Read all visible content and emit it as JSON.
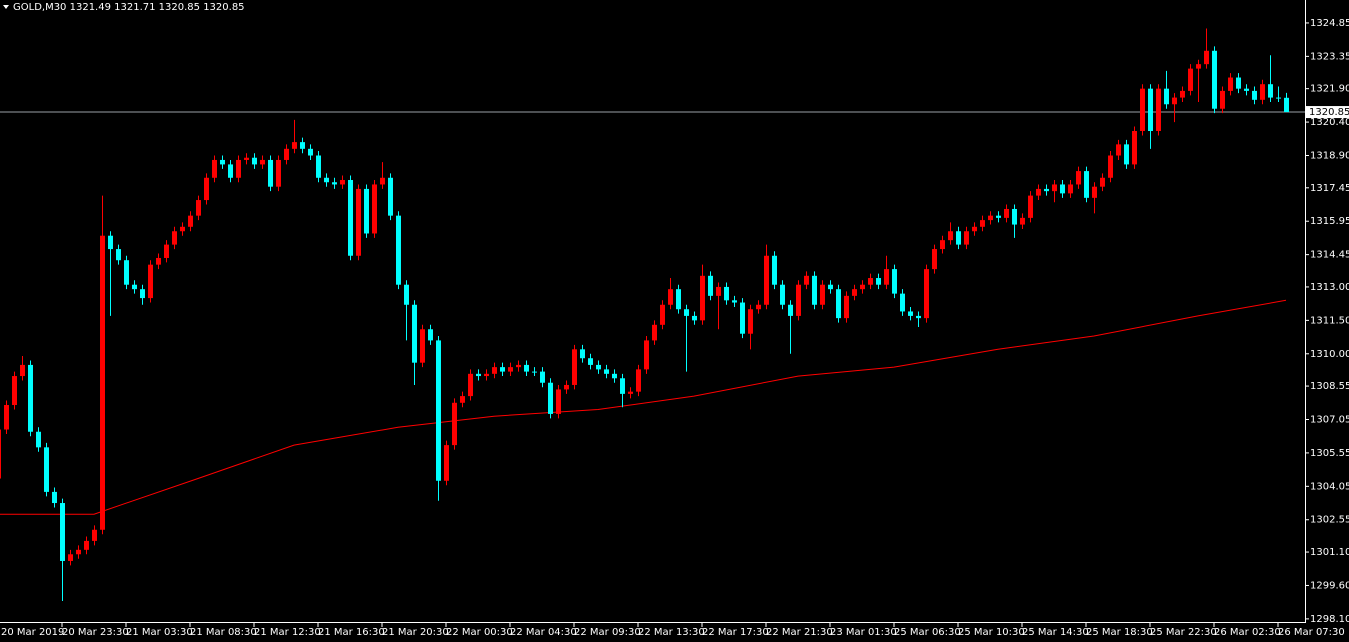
{
  "chart_data": {
    "type": "candlestick",
    "title": "GOLD,M30  1321.49 1321.71 1320.85 1320.85",
    "bull_color": "#ff0000",
    "bear_color": "#00ffff",
    "open": [
      1304.4,
      1306.6,
      1307.7,
      1309.0,
      1309.5,
      1306.5,
      1305.8,
      1303.8,
      1303.3,
      1300.7,
      1301.0,
      1301.2,
      1301.6,
      1302.1,
      1315.3,
      1314.7,
      1314.2,
      1313.1,
      1312.9,
      1312.5,
      1314.0,
      1314.3,
      1314.9,
      1315.5,
      1315.7,
      1316.2,
      1316.9,
      1317.9,
      1318.7,
      1318.5,
      1317.9,
      1318.7,
      1318.8,
      1318.5,
      1318.7,
      1317.5,
      1318.7,
      1319.2,
      1319.5,
      1319.2,
      1318.9,
      1317.9,
      1317.7,
      1317.6,
      1317.8,
      1314.4,
      1317.4,
      1315.4,
      1317.6,
      1317.9,
      1316.2,
      1313.1,
      1312.2,
      1309.6,
      1311.1,
      1310.6,
      1304.3,
      1305.9,
      1307.8,
      1308.1,
      1309.1,
      1309.0,
      1309.1,
      1309.4,
      1309.2,
      1309.4,
      1309.5,
      1309.2,
      1309.2,
      1308.7,
      1307.3,
      1308.4,
      1308.6,
      1310.2,
      1309.8,
      1309.5,
      1309.3,
      1309.1,
      1308.9,
      1308.2,
      1308.3,
      1309.3,
      1310.6,
      1311.3,
      1312.2,
      1312.9,
      1312.0,
      1311.7,
      1311.5,
      1313.5,
      1312.6,
      1313.0,
      1312.4,
      1312.3,
      1310.9,
      1312.0,
      1312.2,
      1314.4,
      1313.1,
      1312.2,
      1311.7,
      1313.1,
      1313.5,
      1312.2,
      1313.1,
      1312.9,
      1311.6,
      1312.6,
      1312.9,
      1313.1,
      1313.4,
      1313.1,
      1313.8,
      1312.7,
      1311.9,
      1311.7,
      1311.6,
      1313.8,
      1314.7,
      1315.1,
      1315.5,
      1314.9,
      1315.5,
      1315.7,
      1316.0,
      1316.2,
      1316.1,
      1316.5,
      1315.8,
      1316.1,
      1317.1,
      1317.4,
      1317.3,
      1317.6,
      1317.2,
      1317.6,
      1318.2,
      1317.0,
      1317.5,
      1317.9,
      1318.9,
      1319.4,
      1318.5,
      1320.0,
      1321.9,
      1320.0,
      1321.9,
      1321.2,
      1321.5,
      1321.8,
      1322.8,
      1323.0,
      1323.6,
      1321.0,
      1321.8,
      1322.4,
      1321.9,
      1321.8,
      1321.4,
      1322.1,
      1321.5,
      1321.49
    ],
    "high": [
      1306.8,
      1307.9,
      1309.2,
      1309.9,
      1309.7,
      1306.7,
      1306.0,
      1304.0,
      1303.5,
      1301.2,
      1301.4,
      1301.8,
      1302.3,
      1317.1,
      1315.5,
      1314.9,
      1314.4,
      1313.3,
      1313.1,
      1314.2,
      1314.5,
      1315.1,
      1315.7,
      1315.9,
      1316.4,
      1317.1,
      1318.1,
      1318.9,
      1318.9,
      1318.7,
      1318.9,
      1319.0,
      1319.0,
      1318.9,
      1318.9,
      1318.9,
      1319.4,
      1320.5,
      1319.7,
      1319.4,
      1319.1,
      1318.1,
      1317.9,
      1318.0,
      1318.0,
      1317.6,
      1317.6,
      1317.8,
      1318.6,
      1318.1,
      1316.4,
      1313.3,
      1312.4,
      1311.3,
      1311.3,
      1310.8,
      1306.1,
      1308.0,
      1308.3,
      1309.3,
      1309.3,
      1309.3,
      1309.6,
      1309.6,
      1309.6,
      1309.7,
      1309.7,
      1309.4,
      1309.4,
      1308.9,
      1308.6,
      1308.8,
      1310.4,
      1310.4,
      1310.0,
      1309.7,
      1309.5,
      1309.3,
      1309.1,
      1308.5,
      1309.5,
      1310.8,
      1311.5,
      1312.4,
      1313.4,
      1313.1,
      1312.2,
      1311.9,
      1314.0,
      1313.7,
      1313.2,
      1313.2,
      1312.6,
      1312.5,
      1312.2,
      1312.4,
      1314.9,
      1314.6,
      1313.3,
      1312.4,
      1313.3,
      1313.7,
      1313.7,
      1313.3,
      1313.3,
      1313.1,
      1312.8,
      1313.1,
      1313.3,
      1313.6,
      1313.6,
      1314.4,
      1314.0,
      1312.9,
      1312.1,
      1311.9,
      1314.0,
      1314.9,
      1315.3,
      1315.9,
      1315.7,
      1315.7,
      1315.9,
      1316.2,
      1316.4,
      1316.4,
      1316.7,
      1316.7,
      1316.3,
      1317.3,
      1317.6,
      1317.6,
      1317.8,
      1317.8,
      1317.8,
      1318.4,
      1318.4,
      1317.7,
      1318.1,
      1319.1,
      1319.6,
      1319.6,
      1320.2,
      1322.1,
      1322.1,
      1322.1,
      1322.7,
      1321.7,
      1322.0,
      1323.0,
      1323.2,
      1324.6,
      1323.8,
      1322.0,
      1322.6,
      1322.6,
      1322.1,
      1322.0,
      1322.3,
      1323.4,
      1322.0,
      1321.71
    ],
    "low": [
      1304.2,
      1306.4,
      1307.5,
      1308.8,
      1306.3,
      1305.6,
      1303.6,
      1303.1,
      1298.9,
      1300.5,
      1300.8,
      1301.0,
      1301.4,
      1301.9,
      1311.7,
      1314.0,
      1312.9,
      1312.7,
      1312.2,
      1312.3,
      1313.8,
      1314.1,
      1314.7,
      1315.3,
      1315.5,
      1316.0,
      1316.7,
      1317.7,
      1318.3,
      1317.7,
      1317.7,
      1318.5,
      1318.3,
      1318.3,
      1317.3,
      1317.3,
      1318.5,
      1319.0,
      1319.0,
      1318.7,
      1317.7,
      1317.5,
      1317.4,
      1317.4,
      1314.2,
      1314.2,
      1315.2,
      1315.2,
      1317.4,
      1316.0,
      1312.9,
      1310.6,
      1308.6,
      1309.4,
      1310.4,
      1303.4,
      1304.1,
      1305.7,
      1307.6,
      1307.9,
      1308.8,
      1308.8,
      1308.9,
      1309.0,
      1309.0,
      1309.2,
      1309.0,
      1309.0,
      1308.5,
      1307.1,
      1307.1,
      1308.2,
      1308.4,
      1309.6,
      1309.3,
      1309.1,
      1308.9,
      1308.7,
      1307.6,
      1308.0,
      1308.1,
      1309.1,
      1310.4,
      1311.1,
      1312.0,
      1311.8,
      1309.2,
      1311.3,
      1311.3,
      1312.4,
      1311.1,
      1312.2,
      1312.1,
      1310.7,
      1310.2,
      1311.8,
      1312.0,
      1312.9,
      1312.0,
      1310.0,
      1311.5,
      1312.9,
      1312.0,
      1312.0,
      1312.7,
      1311.4,
      1311.4,
      1312.4,
      1312.7,
      1312.9,
      1312.9,
      1312.9,
      1312.5,
      1311.7,
      1311.5,
      1311.2,
      1311.4,
      1313.6,
      1314.5,
      1314.9,
      1314.7,
      1314.7,
      1315.3,
      1315.5,
      1315.8,
      1315.9,
      1315.9,
      1315.2,
      1315.6,
      1315.9,
      1316.9,
      1317.1,
      1316.8,
      1317.0,
      1317.0,
      1317.4,
      1316.8,
      1316.3,
      1317.3,
      1317.7,
      1318.7,
      1318.3,
      1318.3,
      1319.8,
      1319.2,
      1319.8,
      1321.0,
      1320.4,
      1321.3,
      1321.6,
      1321.3,
      1322.8,
      1320.8,
      1320.8,
      1321.6,
      1321.7,
      1321.6,
      1321.2,
      1321.2,
      1321.3,
      1321.3,
      1320.85
    ],
    "close": [
      1306.6,
      1307.7,
      1309.0,
      1309.5,
      1306.5,
      1305.8,
      1303.8,
      1303.3,
      1300.7,
      1301.0,
      1301.2,
      1301.6,
      1302.1,
      1315.3,
      1314.7,
      1314.2,
      1313.1,
      1312.9,
      1312.5,
      1314.0,
      1314.3,
      1314.9,
      1315.5,
      1315.7,
      1316.2,
      1316.9,
      1317.9,
      1318.7,
      1318.5,
      1317.9,
      1318.7,
      1318.8,
      1318.5,
      1318.7,
      1317.5,
      1318.7,
      1319.2,
      1319.5,
      1319.2,
      1318.9,
      1317.9,
      1317.7,
      1317.6,
      1317.8,
      1314.4,
      1317.4,
      1315.4,
      1317.6,
      1317.9,
      1316.2,
      1313.1,
      1312.2,
      1309.6,
      1311.1,
      1310.6,
      1304.3,
      1305.9,
      1307.8,
      1308.1,
      1309.1,
      1309.0,
      1309.1,
      1309.4,
      1309.2,
      1309.4,
      1309.5,
      1309.2,
      1309.2,
      1308.7,
      1307.3,
      1308.4,
      1308.6,
      1310.2,
      1309.8,
      1309.5,
      1309.3,
      1309.1,
      1308.9,
      1308.2,
      1308.3,
      1309.3,
      1310.6,
      1311.3,
      1312.2,
      1312.9,
      1312.0,
      1311.7,
      1311.5,
      1313.5,
      1312.6,
      1313.0,
      1312.4,
      1312.3,
      1310.9,
      1312.0,
      1312.2,
      1314.4,
      1313.1,
      1312.2,
      1311.7,
      1313.1,
      1313.5,
      1312.2,
      1313.1,
      1312.9,
      1311.6,
      1312.6,
      1312.9,
      1313.1,
      1313.4,
      1313.1,
      1313.8,
      1312.7,
      1311.9,
      1311.7,
      1311.6,
      1313.8,
      1314.7,
      1315.1,
      1315.5,
      1314.9,
      1315.5,
      1315.7,
      1316.0,
      1316.2,
      1316.1,
      1316.5,
      1315.8,
      1316.1,
      1317.1,
      1317.4,
      1317.3,
      1317.6,
      1317.2,
      1317.6,
      1318.2,
      1317.0,
      1317.5,
      1317.9,
      1318.9,
      1319.4,
      1318.5,
      1320.0,
      1321.9,
      1320.0,
      1321.9,
      1321.2,
      1321.5,
      1321.8,
      1322.8,
      1323.0,
      1323.6,
      1321.0,
      1321.8,
      1322.4,
      1321.9,
      1321.8,
      1321.4,
      1322.1,
      1321.5,
      1321.49,
      1320.85
    ],
    "ma": {
      "color": "#ff0000",
      "x": [
        0,
        12,
        25,
        37,
        50,
        62,
        75,
        87,
        100,
        112,
        125,
        137,
        150,
        161
      ],
      "values": [
        1302.8,
        1302.8,
        1304.4,
        1305.9,
        1306.7,
        1307.2,
        1307.5,
        1308.1,
        1309.0,
        1309.4,
        1310.2,
        1310.8,
        1311.7,
        1312.4
      ]
    },
    "price_line": 1320.85,
    "xlim": [
      0.25,
      163.375
    ],
    "ylim": [
      1297.96,
      1325.88
    ],
    "xticks": [
      {
        "value": 0,
        "label": "20 Mar 2019"
      },
      {
        "value": 8,
        "label": "20 Mar 23:30"
      },
      {
        "value": 16,
        "label": "21 Mar 03:30"
      },
      {
        "value": 24,
        "label": "21 Mar 08:30"
      },
      {
        "value": 32,
        "label": "21 Mar 12:30"
      },
      {
        "value": 40,
        "label": "21 Mar 16:30"
      },
      {
        "value": 48,
        "label": "21 Mar 20:30"
      },
      {
        "value": 56,
        "label": "22 Mar 00:30"
      },
      {
        "value": 64,
        "label": "22 Mar 04:30"
      },
      {
        "value": 72,
        "label": "22 Mar 09:30"
      },
      {
        "value": 80,
        "label": "22 Mar 13:30"
      },
      {
        "value": 88,
        "label": "22 Mar 17:30"
      },
      {
        "value": 96,
        "label": "22 Mar 21:30"
      },
      {
        "value": 104,
        "label": "23 Mar 01:30"
      },
      {
        "value": 112,
        "label": "25 Mar 06:30"
      },
      {
        "value": 120,
        "label": "25 Mar 10:30"
      },
      {
        "value": 128,
        "label": "25 Mar 14:30"
      },
      {
        "value": 136,
        "label": "25 Mar 18:30"
      },
      {
        "value": 144,
        "label": "25 Mar 22:30"
      },
      {
        "value": 152,
        "label": "26 Mar 02:30"
      },
      {
        "value": 160,
        "label": "26 Mar 07:30"
      }
    ],
    "yticks": [
      1324.85,
      1323.35,
      {
        "value": 1321.9,
        "label": "1321.90"
      },
      {
        "value": 1320.4,
        "label": "1320.40"
      },
      {
        "value": 1318.9,
        "label": "1318.90"
      },
      1317.45,
      1315.95,
      1314.45,
      {
        "value": 1313,
        "label": "1313.00"
      },
      {
        "value": 1311.5,
        "label": "1311.50"
      },
      {
        "value": 1310,
        "label": "1310.00"
      },
      1308.55,
      1307.05,
      1305.55,
      1304.05,
      1302.55,
      {
        "value": 1301.1,
        "label": "1301.10"
      },
      {
        "value": 1299.6,
        "label": "1299.60"
      },
      {
        "value": 1298.1,
        "label": "1298.10"
      }
    ]
  }
}
